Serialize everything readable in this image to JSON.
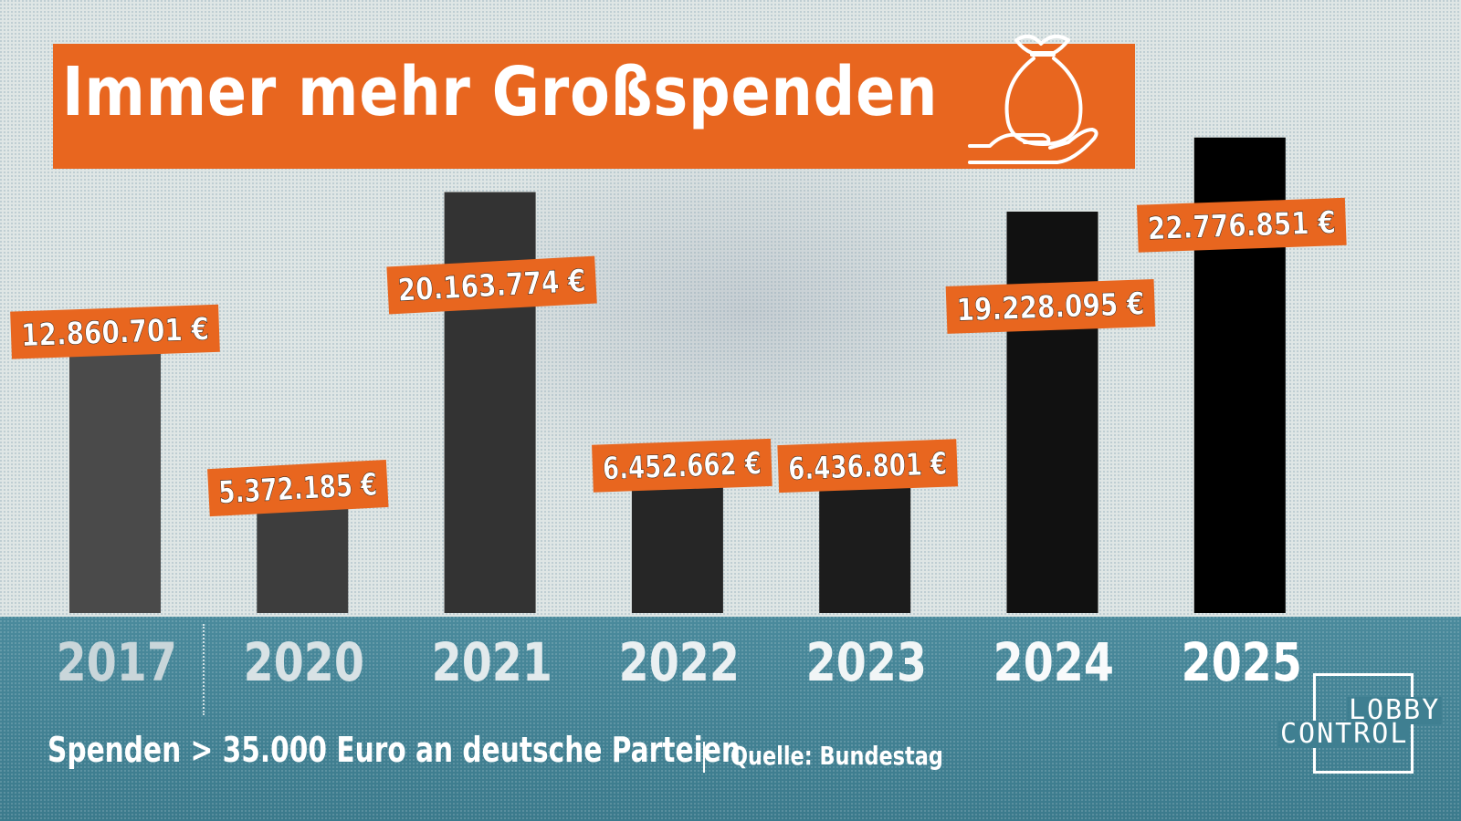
{
  "header": {
    "title": "Immer mehr Großspenden"
  },
  "footer": {
    "subtitle": "Spenden > 35.000 Euro an deutsche Parteien",
    "separator": "|",
    "source": "Quelle: Bundestag"
  },
  "logo": {
    "line1": "LOBBY",
    "line2": "CONTROL"
  },
  "icons": {
    "title_icon": "money-bag-hand-icon"
  },
  "colors": {
    "accent": "#e8661f",
    "band": "#3f7f91",
    "background": "#dfe6e5",
    "bars": [
      "#4a4a4a",
      "#3d3d3d",
      "#333333",
      "#262626",
      "#1c1c1c",
      "#111111",
      "#000000"
    ],
    "year_label_colors": [
      "#c9d6da",
      "#d8e2e5",
      "#e2eaec",
      "#eaf0f2",
      "#f1f5f6",
      "#f8fafb",
      "#ffffff"
    ]
  },
  "chart_data": {
    "type": "bar",
    "title": "Immer mehr Großspenden",
    "xlabel": "",
    "ylabel": "",
    "categories": [
      "2017",
      "2020",
      "2021",
      "2022",
      "2023",
      "2024",
      "2025"
    ],
    "values": [
      12860701,
      5372185,
      20163774,
      6452662,
      6436801,
      19228095,
      22776851
    ],
    "value_labels": [
      "12.860.701 €",
      "5.372.185 €",
      "20.163.774 €",
      "6.452.662 €",
      "6.436.801 €",
      "19.228.095 €",
      "22.776.851 €"
    ],
    "ylim": [
      0,
      26000000
    ],
    "grid": false,
    "legend": "none"
  }
}
